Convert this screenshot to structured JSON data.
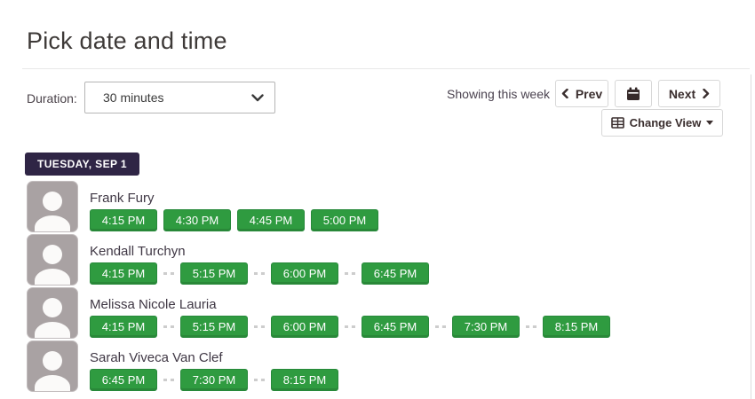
{
  "page": {
    "title": "Pick date and time"
  },
  "toolbar": {
    "duration_label": "Duration:",
    "duration_value": "30 minutes",
    "showing_text": "Showing this week",
    "prev_label": "Prev",
    "next_label": "Next",
    "change_view_label": "Change View"
  },
  "date_header": "TUESDAY, SEP 1",
  "colors": {
    "slot-green": "#2f9b40",
    "slot-green-border": "#27893a",
    "badge-purple": "#2f2545",
    "text-dark": "#3e3a38",
    "btn-text": "#3a2e2e"
  },
  "people": [
    {
      "name": "Frank Fury",
      "slots": [
        "4:15 PM",
        "4:30 PM",
        "4:45 PM",
        "5:00 PM"
      ],
      "separated": false
    },
    {
      "name": "Kendall Turchyn",
      "slots": [
        "4:15 PM",
        "5:15 PM",
        "6:00 PM",
        "6:45 PM"
      ],
      "separated": true
    },
    {
      "name": "Melissa Nicole Lauria",
      "slots": [
        "4:15 PM",
        "5:15 PM",
        "6:00 PM",
        "6:45 PM",
        "7:30 PM",
        "8:15 PM"
      ],
      "separated": true
    },
    {
      "name": "Sarah Viveca Van Clef",
      "slots": [
        "6:45 PM",
        "7:30 PM",
        "8:15 PM"
      ],
      "separated": true
    }
  ]
}
